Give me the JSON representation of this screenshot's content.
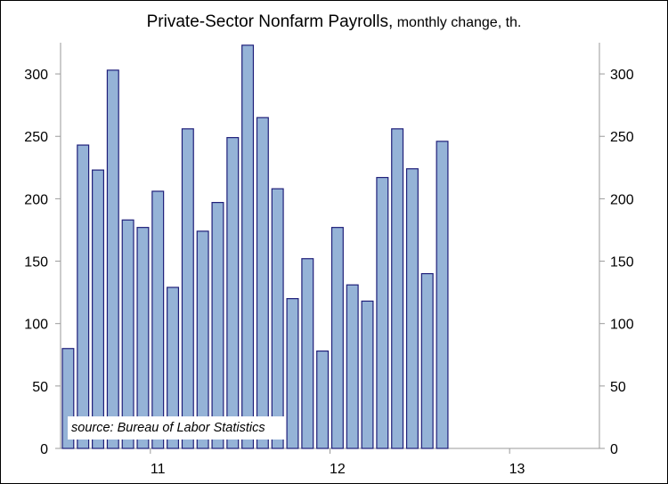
{
  "chart_data": {
    "type": "bar",
    "title_main": "Private-Sector Nonfarm Payrolls,",
    "title_sub": " monthly change, th.",
    "source": "source: Bureau of Labor Statistics",
    "ylim": [
      0,
      325
    ],
    "yticks": [
      "0",
      "50",
      "100",
      "150",
      "200",
      "250",
      "300"
    ],
    "xticks": [
      {
        "label": "11",
        "index": 6
      },
      {
        "label": "12",
        "index": 18
      },
      {
        "label": "13",
        "index": 30
      }
    ],
    "x_slots": 36,
    "grid": false,
    "colors": {
      "bar_fill": "#95b3d7",
      "bar_stroke": "#1f1f7a",
      "axis": "#9a9a9a"
    },
    "values": [
      80,
      243,
      223,
      303,
      183,
      177,
      206,
      129,
      256,
      174,
      197,
      249,
      323,
      265,
      208,
      120,
      152,
      78,
      177,
      131,
      118,
      217,
      256,
      224,
      140,
      246
    ]
  }
}
